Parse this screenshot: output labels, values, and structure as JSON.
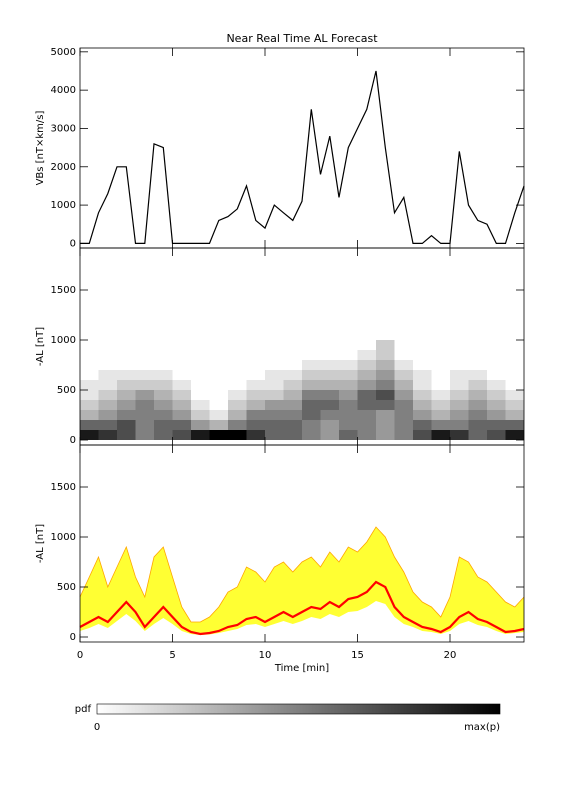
{
  "chart_data": [
    {
      "type": "line",
      "title": "Near Real Time AL Forecast",
      "ylabel": "VBs [nT×km/s]",
      "color": "#000000",
      "xlim": [
        0,
        24
      ],
      "ylim": [
        -120,
        5100
      ],
      "yticks": [
        0,
        1000,
        2000,
        3000,
        4000,
        5000
      ],
      "x": [
        0,
        0.5,
        1,
        1.5,
        2,
        2.5,
        3,
        3.5,
        4,
        4.5,
        5,
        5.5,
        6,
        6.5,
        7,
        7.5,
        8,
        8.5,
        9,
        9.5,
        10,
        10.5,
        11,
        11.5,
        12,
        12.5,
        13,
        13.5,
        14,
        14.5,
        15,
        15.5,
        16,
        16.5,
        17,
        17.5,
        18,
        18.5,
        19,
        19.5,
        20,
        20.5,
        21,
        21.5,
        22,
        22.5,
        23,
        23.5,
        24
      ],
      "values": [
        0,
        0,
        800,
        1300,
        2000,
        2000,
        0,
        0,
        2600,
        2500,
        0,
        0,
        0,
        0,
        0,
        600,
        700,
        900,
        1500,
        600,
        400,
        1000,
        800,
        600,
        1100,
        3500,
        1800,
        2800,
        1200,
        2500,
        3000,
        3500,
        4500,
        2500,
        800,
        1200,
        0,
        0,
        200,
        0,
        0,
        2400,
        1000,
        600,
        500,
        0,
        0,
        800,
        1500
      ]
    },
    {
      "type": "heatmap",
      "ylabel": "-AL [nT]",
      "xlim": [
        0,
        24
      ],
      "ylim": [
        -50,
        1920
      ],
      "yticks": [
        0,
        500,
        1000,
        1500
      ],
      "x_bins": [
        0,
        1,
        2,
        3,
        4,
        5,
        6,
        7,
        8,
        9,
        10,
        11,
        12,
        13,
        14,
        15,
        16,
        17,
        18,
        19,
        20,
        21,
        22,
        23,
        24
      ],
      "y_bins": [
        0,
        100,
        200,
        300,
        400,
        500,
        600,
        700,
        800,
        900,
        1000
      ],
      "z": [
        [
          0.9,
          0.8,
          0.7,
          0.5,
          0.6,
          0.7,
          0.9,
          1.0,
          1.0,
          0.8,
          0.6,
          0.6,
          0.5,
          0.4,
          0.6,
          0.5,
          0.4,
          0.5,
          0.7,
          0.9,
          0.8,
          0.6,
          0.7,
          0.9
        ],
        [
          0.6,
          0.6,
          0.7,
          0.5,
          0.6,
          0.6,
          0.4,
          0.3,
          0.5,
          0.6,
          0.6,
          0.6,
          0.5,
          0.4,
          0.5,
          0.5,
          0.4,
          0.5,
          0.6,
          0.5,
          0.5,
          0.6,
          0.6,
          0.6
        ],
        [
          0.3,
          0.4,
          0.5,
          0.5,
          0.5,
          0.4,
          0.2,
          0.1,
          0.3,
          0.5,
          0.5,
          0.5,
          0.6,
          0.5,
          0.5,
          0.5,
          0.4,
          0.5,
          0.4,
          0.3,
          0.4,
          0.5,
          0.4,
          0.3
        ],
        [
          0.2,
          0.3,
          0.4,
          0.5,
          0.4,
          0.3,
          0.1,
          0,
          0.2,
          0.3,
          0.4,
          0.4,
          0.6,
          0.6,
          0.5,
          0.6,
          0.6,
          0.5,
          0.3,
          0.2,
          0.3,
          0.4,
          0.3,
          0.2
        ],
        [
          0.1,
          0.2,
          0.3,
          0.4,
          0.3,
          0.2,
          0,
          0,
          0.1,
          0.2,
          0.2,
          0.3,
          0.5,
          0.5,
          0.4,
          0.6,
          0.7,
          0.4,
          0.2,
          0.1,
          0.2,
          0.3,
          0.2,
          0.1
        ],
        [
          0.1,
          0.1,
          0.2,
          0.2,
          0.2,
          0.1,
          0,
          0,
          0,
          0.1,
          0.1,
          0.2,
          0.3,
          0.3,
          0.3,
          0.4,
          0.5,
          0.3,
          0.1,
          0,
          0.1,
          0.2,
          0.1,
          0
        ],
        [
          0,
          0.1,
          0.1,
          0.1,
          0.1,
          0,
          0,
          0,
          0,
          0,
          0.1,
          0.1,
          0.2,
          0.2,
          0.2,
          0.3,
          0.4,
          0.2,
          0.1,
          0,
          0.1,
          0.1,
          0,
          0
        ],
        [
          0,
          0,
          0,
          0,
          0,
          0,
          0,
          0,
          0,
          0,
          0,
          0,
          0.1,
          0.1,
          0.1,
          0.2,
          0.3,
          0.1,
          0,
          0,
          0,
          0,
          0,
          0
        ],
        [
          0,
          0,
          0,
          0,
          0,
          0,
          0,
          0,
          0,
          0,
          0,
          0,
          0,
          0,
          0,
          0.1,
          0.2,
          0,
          0,
          0,
          0,
          0,
          0,
          0
        ],
        [
          0,
          0,
          0,
          0,
          0,
          0,
          0,
          0,
          0,
          0,
          0,
          0,
          0,
          0,
          0,
          0,
          0.2,
          0,
          0,
          0,
          0,
          0,
          0,
          0
        ]
      ]
    },
    {
      "type": "band",
      "ylabel": "-AL [nT]",
      "xlabel": "Time [min]",
      "color": "#ff0000",
      "band_color": "#ffff33",
      "edge_color": "#ffa500",
      "xlim": [
        0,
        24
      ],
      "ylim": [
        -50,
        1920
      ],
      "yticks": [
        0,
        500,
        1000,
        1500
      ],
      "xticks": [
        0,
        5,
        10,
        15,
        20
      ],
      "x": [
        0,
        0.5,
        1,
        1.5,
        2,
        2.5,
        3,
        3.5,
        4,
        4.5,
        5,
        5.5,
        6,
        6.5,
        7,
        7.5,
        8,
        8.5,
        9,
        9.5,
        10,
        10.5,
        11,
        11.5,
        12,
        12.5,
        13,
        13.5,
        14,
        14.5,
        15,
        15.5,
        16,
        16.5,
        17,
        17.5,
        18,
        18.5,
        19,
        19.5,
        20,
        20.5,
        21,
        21.5,
        22,
        22.5,
        23,
        23.5,
        24
      ],
      "values": [
        100,
        150,
        200,
        150,
        250,
        350,
        250,
        100,
        200,
        300,
        200,
        100,
        50,
        30,
        40,
        60,
        100,
        120,
        180,
        200,
        150,
        200,
        250,
        200,
        250,
        300,
        280,
        350,
        300,
        380,
        400,
        450,
        550,
        500,
        300,
        200,
        150,
        100,
        80,
        50,
        100,
        200,
        250,
        180,
        150,
        100,
        50,
        60,
        80
      ],
      "upper": [
        400,
        600,
        800,
        500,
        700,
        900,
        600,
        400,
        800,
        900,
        600,
        300,
        150,
        150,
        200,
        300,
        450,
        500,
        700,
        650,
        550,
        700,
        750,
        650,
        750,
        800,
        700,
        850,
        750,
        900,
        850,
        950,
        1100,
        1000,
        800,
        650,
        450,
        350,
        300,
        200,
        400,
        800,
        750,
        600,
        550,
        450,
        350,
        300,
        400
      ],
      "lower": [
        60,
        90,
        130,
        90,
        160,
        230,
        160,
        60,
        130,
        190,
        130,
        60,
        30,
        20,
        25,
        40,
        60,
        80,
        120,
        130,
        100,
        130,
        160,
        130,
        160,
        200,
        180,
        230,
        200,
        250,
        260,
        300,
        360,
        330,
        200,
        130,
        100,
        60,
        50,
        30,
        60,
        130,
        160,
        120,
        100,
        60,
        30,
        40,
        50
      ]
    }
  ],
  "colorbar": {
    "label": "pdf",
    "min_label": "0",
    "max_label": "max(p)"
  }
}
